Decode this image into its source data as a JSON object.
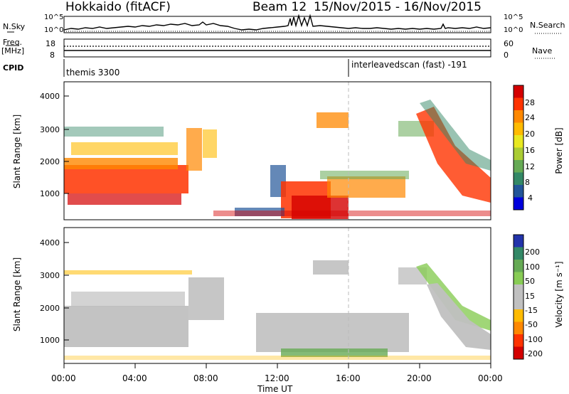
{
  "header": {
    "station": "Hokkaido (fitACF)",
    "beam": "Beam 12",
    "date_range": "15/Nov/2015 - 16/Nov/2015"
  },
  "top_panels": {
    "nsky_label": "N.Sky",
    "nsearch_label": "N.Search",
    "count_ticks": [
      "10^5",
      "10^0"
    ],
    "freq_label": "Freq.",
    "freq_unit": "[MHz]",
    "freq_ticks": [
      "18",
      "8"
    ],
    "nave_label": "Nave",
    "nave_ticks": [
      "60",
      "0"
    ],
    "cpid_label": "CPID",
    "cpid_segments": [
      {
        "name": "themis 3300",
        "start_hour": 0
      },
      {
        "name": "interleavedscan (fast) -191",
        "start_hour": 16
      }
    ]
  },
  "chart_data": [
    {
      "type": "heatmap",
      "name": "power",
      "ylabel": "Slant Range [km]",
      "ylim": [
        180,
        4550
      ],
      "yticks": [
        "1000",
        "2000",
        "3000",
        "4000"
      ],
      "xlim_hours": [
        0,
        24
      ],
      "colorbar_label": "Power [dB]",
      "colorbar_ticks": [
        "28",
        "24",
        "20",
        "16",
        "12",
        "8",
        "4"
      ],
      "colorbar_colors": [
        "#d40000",
        "#ff3300",
        "#ff8800",
        "#ffbb00",
        "#e8e820",
        "#aacc33",
        "#66aa55",
        "#338866",
        "#225599",
        "#0000dd"
      ]
    },
    {
      "type": "heatmap",
      "name": "velocity",
      "ylabel": "Slant Range [km]",
      "ylim": [
        180,
        4550
      ],
      "yticks": [
        "1000",
        "2000",
        "3000",
        "4000"
      ],
      "xlim_hours": [
        0,
        24
      ],
      "xlabel": "Time UT",
      "xticks": [
        "00:00",
        "04:00",
        "08:00",
        "12:00",
        "16:00",
        "20:00",
        "00:00"
      ],
      "colorbar_label": "Velocity [m s⁻¹]",
      "colorbar_ticks": [
        "200",
        "100",
        "50",
        "15",
        "-15",
        "-50",
        "-100",
        "-200"
      ],
      "colorbar_colors": [
        "#2233aa",
        "#338866",
        "#66aa55",
        "#88cc55",
        "#c0c0c0",
        "#c0c0c0",
        "#ffbb00",
        "#ff8800",
        "#ff3300",
        "#d40000"
      ]
    }
  ]
}
